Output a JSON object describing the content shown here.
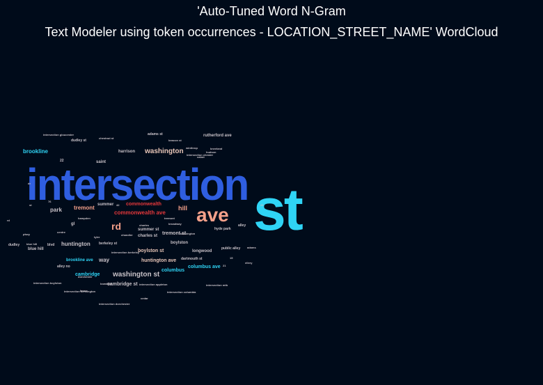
{
  "title": {
    "line1": "'Auto-Tuned Word  N-Gram",
    "line2": "Text Modeler using token occurrences - LOCATION_STREET_NAME' WordCloud"
  },
  "colors": {
    "background": "#000b1a",
    "blue_dark": "#2f5ee0",
    "blue_light": "#2fd4f5",
    "salmon": "#f4a08a",
    "red": "#e5383b",
    "tan": "#e8c6b8",
    "grey": "#c9c2c8"
  },
  "chart_data": {
    "type": "wordcloud",
    "words": [
      {
        "text": "intersection",
        "weight": 100,
        "color": "blue_dark"
      },
      {
        "text": "st",
        "weight": 95,
        "color": "blue_light"
      },
      {
        "text": "ave",
        "weight": 32,
        "color": "salmon"
      },
      {
        "text": "rd",
        "weight": 16,
        "color": "salmon"
      },
      {
        "text": "washington st",
        "weight": 11,
        "color": "grey"
      },
      {
        "text": "washington",
        "weight": 10,
        "color": "tan"
      },
      {
        "text": "commonwealth ave",
        "weight": 8,
        "color": "red"
      },
      {
        "text": "huntington ave",
        "weight": 8,
        "color": "tan"
      },
      {
        "text": "huntington",
        "weight": 8,
        "color": "grey"
      },
      {
        "text": "brookline",
        "weight": 7,
        "color": "blue_light"
      },
      {
        "text": "tremont",
        "weight": 7,
        "color": "salmon"
      },
      {
        "text": "boylston st",
        "weight": 7,
        "color": "tan"
      },
      {
        "text": "hill",
        "weight": 7,
        "color": "salmon"
      },
      {
        "text": "park",
        "weight": 7,
        "color": "grey"
      },
      {
        "text": "way",
        "weight": 7,
        "color": "grey"
      },
      {
        "text": "commonwealth",
        "weight": 6,
        "color": "red"
      },
      {
        "text": "tremont st",
        "weight": 6,
        "color": "grey"
      },
      {
        "text": "cambridge st",
        "weight": 6,
        "color": "grey"
      },
      {
        "text": "columbus ave",
        "weight": 6,
        "color": "blue_light"
      },
      {
        "text": "cambridge",
        "weight": 6,
        "color": "blue_light"
      },
      {
        "text": "columbus",
        "weight": 6,
        "color": "blue_light"
      },
      {
        "text": "longwood",
        "weight": 6,
        "color": "grey"
      },
      {
        "text": "harrison",
        "weight": 6,
        "color": "grey"
      },
      {
        "text": "saint",
        "weight": 6,
        "color": "grey"
      },
      {
        "text": "summer",
        "weight": 5,
        "color": "grey"
      },
      {
        "text": "summer st",
        "weight": 5,
        "color": "grey"
      },
      {
        "text": "boylston",
        "weight": 5,
        "color": "grey"
      },
      {
        "text": "berkeley st",
        "weight": 5,
        "color": "grey"
      },
      {
        "text": "charles st",
        "weight": 5,
        "color": "grey"
      },
      {
        "text": "blue hill",
        "weight": 5,
        "color": "grey"
      },
      {
        "text": "brookline ave",
        "weight": 5,
        "color": "blue_light"
      },
      {
        "text": "public alley",
        "weight": 5,
        "color": "grey"
      },
      {
        "text": "dudley",
        "weight": 5,
        "color": "grey"
      },
      {
        "text": "dartmouth st",
        "weight": 4,
        "color": "grey"
      },
      {
        "text": "hyde park",
        "weight": 4,
        "color": "grey"
      },
      {
        "text": "adams st",
        "weight": 4,
        "color": "grey"
      },
      {
        "text": "rutherford ave",
        "weight": 4,
        "color": "grey"
      },
      {
        "text": "alley",
        "weight": 4,
        "color": "grey"
      },
      {
        "text": "blvd",
        "weight": 4,
        "color": "grey"
      },
      {
        "text": "gl",
        "weight": 4,
        "color": "grey"
      },
      {
        "text": "alley no",
        "weight": 4,
        "color": "grey"
      },
      {
        "text": "intersection gloucester",
        "weight": 3,
        "color": "grey"
      },
      {
        "text": "intersection boylston",
        "weight": 3,
        "color": "grey"
      },
      {
        "text": "intersection dorchester",
        "weight": 3,
        "color": "grey"
      },
      {
        "text": "intersection kensington",
        "weight": 3,
        "color": "grey"
      },
      {
        "text": "intersection appleton",
        "weight": 3,
        "color": "grey"
      },
      {
        "text": "intersection columbia",
        "weight": 3,
        "color": "grey"
      },
      {
        "text": "intersection berkeley",
        "weight": 3,
        "color": "grey"
      },
      {
        "text": "intersection chester",
        "weight": 3,
        "color": "grey"
      },
      {
        "text": "intersection mtb",
        "weight": 3,
        "color": "grey"
      },
      {
        "text": "dudley st",
        "weight": 3,
        "color": "grey"
      },
      {
        "text": "chestnut st",
        "weight": 3,
        "color": "grey"
      },
      {
        "text": "beacon st",
        "weight": 3,
        "color": "grey"
      },
      {
        "text": "tyler",
        "weight": 3,
        "color": "grey"
      },
      {
        "text": "kneeland",
        "weight": 3,
        "color": "grey"
      },
      {
        "text": "chandler",
        "weight": 3,
        "color": "grey"
      },
      {
        "text": "dorchester",
        "weight": 3,
        "color": "grey"
      },
      {
        "text": "winthrop",
        "weight": 3,
        "color": "grey"
      },
      {
        "text": "lenox",
        "weight": 3,
        "color": "grey"
      },
      {
        "text": "broadway",
        "weight": 3,
        "color": "grey"
      },
      {
        "text": "tremont",
        "weight": 3,
        "color": "grey"
      },
      {
        "text": "cabot",
        "weight": 3,
        "color": "grey"
      },
      {
        "text": "centre",
        "weight": 3,
        "color": "grey"
      },
      {
        "text": "charles",
        "weight": 3,
        "color": "grey"
      },
      {
        "text": "ellery",
        "weight": 3,
        "color": "grey"
      },
      {
        "text": "hampden",
        "weight": 3,
        "color": "grey"
      },
      {
        "text": "cedar",
        "weight": 3,
        "color": "grey"
      },
      {
        "text": "bowdoin",
        "weight": 3,
        "color": "grey"
      },
      {
        "text": "hudson",
        "weight": 3,
        "color": "grey"
      },
      {
        "text": "blue hill",
        "weight": 3,
        "color": "grey"
      },
      {
        "text": "washington",
        "weight": 3,
        "color": "grey"
      },
      {
        "text": "adams",
        "weight": 3,
        "color": "grey"
      },
      {
        "text": "rd",
        "weight": 3,
        "color": "grey"
      },
      {
        "text": "st",
        "weight": 3,
        "color": "grey"
      },
      {
        "text": "dr",
        "weight": 3,
        "color": "grey"
      },
      {
        "text": "pkwy",
        "weight": 3,
        "color": "grey"
      },
      {
        "text": "23",
        "weight": 3,
        "color": "grey"
      },
      {
        "text": "22",
        "weight": 3,
        "color": "grey"
      },
      {
        "text": "15",
        "weight": 3,
        "color": "grey"
      },
      {
        "text": "42",
        "weight": 3,
        "color": "grey"
      },
      {
        "text": "76",
        "weight": 3,
        "color": "grey"
      },
      {
        "text": "21",
        "weight": 3,
        "color": "grey"
      }
    ]
  }
}
